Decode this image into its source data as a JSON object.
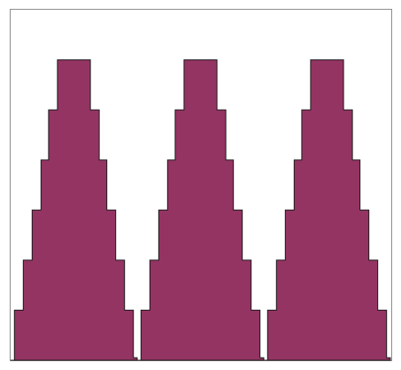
{
  "chart_data": {
    "type": "area",
    "x": [
      0,
      0.03,
      0.1,
      0.17,
      0.24,
      0.3,
      0.37,
      0.43,
      0.5,
      0.57,
      0.63,
      0.7,
      0.76,
      0.83,
      0.9,
      0.97,
      1,
      1,
      1.03,
      1.1,
      1.17,
      1.24,
      1.3,
      1.37,
      1.43,
      1.5,
      1.57,
      1.63,
      1.7,
      1.76,
      1.83,
      1.9,
      1.97,
      2,
      2,
      2.03,
      2.1,
      2.17,
      2.24,
      2.3,
      2.37,
      2.43,
      2.5,
      2.57,
      2.63,
      2.7,
      2.76,
      2.83,
      2.9,
      2.97,
      3
    ],
    "series": [
      {
        "values": [
          0,
          1,
          2,
          3,
          4,
          5,
          6,
          6,
          6,
          6,
          5,
          4,
          3,
          2,
          1,
          0.05,
          0,
          0,
          1,
          2,
          3,
          4,
          5,
          6,
          6,
          6,
          6,
          5,
          4,
          3,
          2,
          1,
          0.05,
          0,
          0,
          1,
          2,
          3,
          4,
          5,
          6,
          6,
          6,
          6,
          5,
          4,
          3,
          2,
          1,
          0.05,
          0
        ]
      }
    ],
    "xlim": [
      0,
      3
    ],
    "ylim": [
      0,
      7
    ],
    "grid": false,
    "colors": {
      "fill": "#943463",
      "stroke": "#1a1a1a",
      "frame": "#8c8c8c",
      "background": "#ffffff"
    }
  }
}
